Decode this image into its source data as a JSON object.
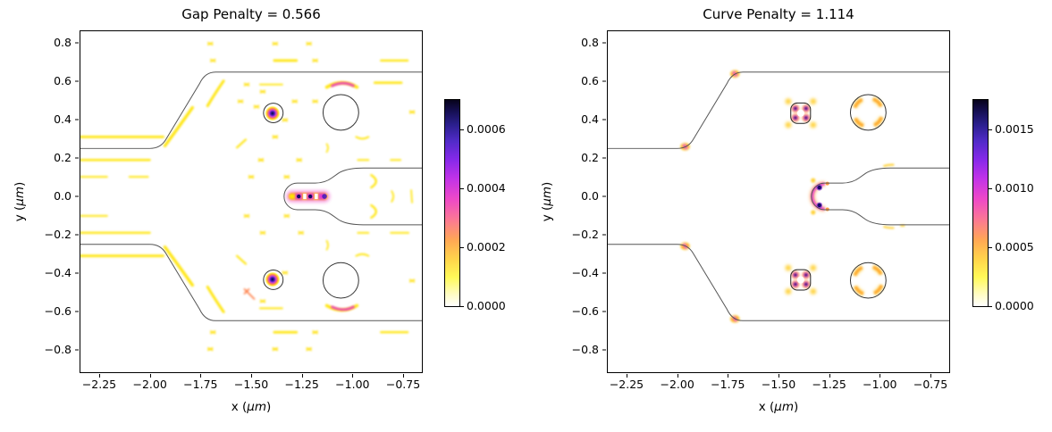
{
  "chart_data": [
    {
      "type": "heatmap",
      "title": "Gap Penalty = 0.566",
      "penalty_name": "Gap Penalty",
      "penalty_value": 0.566,
      "xlabel": {
        "pre": "x (",
        "unit": "μm",
        "post": ")"
      },
      "ylabel": {
        "pre": "y (",
        "unit": "μm",
        "post": ")"
      },
      "xlim": [
        -2.347,
        -0.653
      ],
      "ylim": [
        -0.921,
        0.865
      ],
      "xticks": [
        {
          "v": -2.25,
          "label": "−2.25"
        },
        {
          "v": -2.0,
          "label": "−2.00"
        },
        {
          "v": -1.75,
          "label": "−1.75"
        },
        {
          "v": -1.5,
          "label": "−1.50"
        },
        {
          "v": -1.25,
          "label": "−1.25"
        },
        {
          "v": -1.0,
          "label": "−1.00"
        },
        {
          "v": -0.75,
          "label": "−0.75"
        }
      ],
      "yticks": [
        {
          "v": 0.8,
          "label": "0.8"
        },
        {
          "v": 0.6,
          "label": "0.6"
        },
        {
          "v": 0.4,
          "label": "0.4"
        },
        {
          "v": 0.2,
          "label": "0.2"
        },
        {
          "v": 0.0,
          "label": "0.0"
        },
        {
          "v": -0.2,
          "label": "−0.2"
        },
        {
          "v": -0.4,
          "label": "−0.4"
        },
        {
          "v": -0.6,
          "label": "−0.6"
        },
        {
          "v": -0.8,
          "label": "−0.8"
        }
      ],
      "colorbar": {
        "vmax": 0.0007,
        "colormap": "gnuplot2_r (white-yellow-orange-magenta-violet-blue-black)",
        "ticks": [
          {
            "v": 0.0,
            "label": "0.0000"
          },
          {
            "v": 0.0002,
            "label": "0.0002"
          },
          {
            "v": 0.0004,
            "label": "0.0004"
          },
          {
            "v": 0.0006,
            "label": "0.0006"
          }
        ]
      },
      "geometry": {
        "input_waveguide_edges_y": [
          0.25,
          -0.25
        ],
        "taper_slope_x_range": [
          -1.96,
          -1.71
        ],
        "output_waveguide_edges_y": [
          0.65,
          -0.65
        ],
        "center_slot": "rounded-end slot at y=0, half-width 0.07, cap at x=-1.34, flares to y=+/-0.15 by x=-0.92",
        "small_holes": [
          {
            "x": -1.39,
            "y": 0.44,
            "r": 0.05
          },
          {
            "x": -1.39,
            "y": -0.44,
            "r": 0.05
          }
        ],
        "large_holes": [
          {
            "x": -1.06,
            "y": 0.44,
            "r": 0.09
          },
          {
            "x": -1.06,
            "y": -0.44,
            "r": 0.09
          }
        ]
      },
      "hotspots": [
        "strong dashed streak inside center slot at y=0, x=-1.32 to -1.12 (peak ~0.0006)",
        "point peaks inside small holes at (-1.39, +/-0.44)",
        "magenta-cored lens streaks at (-1.03, +/-0.59)",
        "faint horizontal field fringes at input edge, y=+/-0.10, +/-0.19, +/-0.31",
        "diagonal fringes along both taper slopes",
        "scattered small yellow fringes across panel"
      ]
    },
    {
      "type": "heatmap",
      "title": "Curve Penalty = 1.114",
      "penalty_name": "Curve Penalty",
      "penalty_value": 1.114,
      "xlabel": {
        "pre": "x (",
        "unit": "μm",
        "post": ")"
      },
      "ylabel": {
        "pre": "y (",
        "unit": "μm",
        "post": ")"
      },
      "xlim": [
        -2.347,
        -0.653
      ],
      "ylim": [
        -0.921,
        0.865
      ],
      "xticks": [
        {
          "v": -2.25,
          "label": "−2.25"
        },
        {
          "v": -2.0,
          "label": "−2.00"
        },
        {
          "v": -1.75,
          "label": "−1.75"
        },
        {
          "v": -1.5,
          "label": "−1.50"
        },
        {
          "v": -1.25,
          "label": "−1.25"
        },
        {
          "v": -1.0,
          "label": "−1.00"
        },
        {
          "v": -0.75,
          "label": "−0.75"
        }
      ],
      "yticks": [
        {
          "v": 0.8,
          "label": "0.8"
        },
        {
          "v": 0.6,
          "label": "0.6"
        },
        {
          "v": 0.4,
          "label": "0.4"
        },
        {
          "v": 0.2,
          "label": "0.2"
        },
        {
          "v": 0.0,
          "label": "0.0"
        },
        {
          "v": -0.2,
          "label": "−0.2"
        },
        {
          "v": -0.4,
          "label": "−0.4"
        },
        {
          "v": -0.6,
          "label": "−0.6"
        },
        {
          "v": -0.8,
          "label": "−0.8"
        }
      ],
      "colorbar": {
        "vmax": 0.00175,
        "colormap": "gnuplot2_r (white-yellow-orange-magenta-violet-blue-black)",
        "ticks": [
          {
            "v": 0.0,
            "label": "0.0000"
          },
          {
            "v": 0.0005,
            "label": "0.0005"
          },
          {
            "v": 0.001,
            "label": "0.0010"
          },
          {
            "v": 0.0015,
            "label": "0.0015"
          }
        ]
      },
      "geometry": {
        "input_waveguide_edges_y": [
          0.25,
          -0.25
        ],
        "taper_slope_x_range": [
          -1.96,
          -1.71
        ],
        "output_waveguide_edges_y": [
          0.65,
          -0.65
        ],
        "center_slot": "rounded-end slot at y=0, half-width 0.07, cap at x=-1.34, flares to y=+/-0.15 by x=-0.92",
        "small_holes": [
          {
            "x": -1.39,
            "y": 0.44,
            "r": 0.05
          },
          {
            "x": -1.39,
            "y": -0.44,
            "r": 0.05
          }
        ],
        "large_holes": [
          {
            "x": -1.06,
            "y": 0.44,
            "r": 0.09
          },
          {
            "x": -1.06,
            "y": -0.44,
            "r": 0.09
          }
        ]
      },
      "hotspots": [
        "curvature hotspots at taper corners (-1.96, +/-0.25) and (-1.71, +/-0.65)",
        "four navy corner peaks on rounded-square small holes at (-1.39, +/-0.44)",
        "four orange arc segments on large circular holes at (-1.06, +/-0.44)",
        "magenta/navy hotspots on rounded end-cap of center slot near (-1.30, 0)",
        "faint yellow dashes where slot flares meet output arms near (-0.97, +/-0.15)"
      ]
    }
  ]
}
